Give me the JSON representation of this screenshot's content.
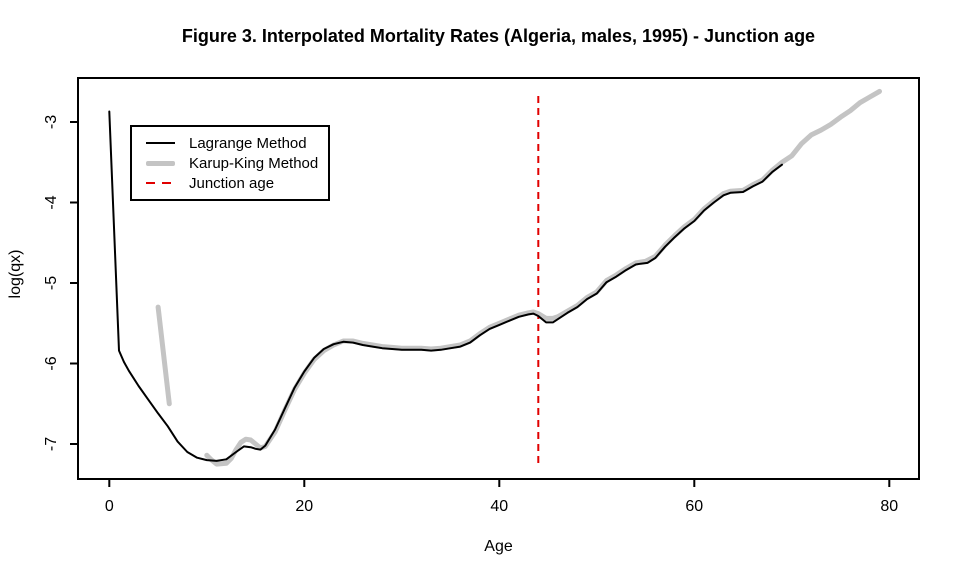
{
  "title": "Figure 3. Interpolated Mortality Rates (Algeria, males, 1995) - Junction age",
  "axes": {
    "x": {
      "label": "Age",
      "ticks": [
        "0",
        "20",
        "40",
        "60",
        "80"
      ]
    },
    "y": {
      "label": "log(qx)",
      "ticks": [
        "-3",
        "-4",
        "-5",
        "-6",
        "-7"
      ]
    }
  },
  "legend": {
    "items": [
      {
        "label": "Lagrange Method"
      },
      {
        "label": "Karup-King Method"
      },
      {
        "label": "Junction age"
      }
    ]
  },
  "colors": {
    "lagrange": "#000000",
    "karup_king": "#C4C4C4",
    "junction": "#E00000",
    "axis": "#000000"
  },
  "chart_data": {
    "type": "line",
    "title": "Figure 3. Interpolated Mortality Rates (Algeria, males, 1995) - Junction age",
    "xlabel": "Age",
    "ylabel": "log(qx)",
    "xlim": [
      -3,
      83
    ],
    "ylim": [
      -7.45,
      -2.45
    ],
    "x_ticks": [
      0,
      20,
      40,
      60,
      80
    ],
    "y_ticks": [
      -3,
      -4,
      -5,
      -6,
      -7
    ],
    "grid": false,
    "legend_position": "top-left",
    "junction_age": 44,
    "junction_line": {
      "x": 44,
      "style": "dashed",
      "color": "#E00000"
    },
    "series": [
      {
        "name": "Karup-King Method",
        "color": "#C4C4C4",
        "width": 5,
        "segments": [
          [
            [
              5,
              -5.3
            ],
            [
              6.15,
              -6.5
            ]
          ],
          [
            [
              10,
              -7.14
            ],
            [
              10.5,
              -7.2
            ],
            [
              11,
              -7.25
            ],
            [
              12,
              -7.24
            ],
            [
              12.5,
              -7.18
            ],
            [
              13,
              -7.07
            ],
            [
              13.5,
              -6.98
            ],
            [
              14,
              -6.94
            ],
            [
              14.5,
              -6.95
            ],
            [
              15,
              -7.0
            ],
            [
              15.5,
              -7.05
            ],
            [
              16,
              -7.03
            ],
            [
              17,
              -6.85
            ],
            [
              18,
              -6.58
            ],
            [
              19,
              -6.32
            ],
            [
              20,
              -6.12
            ],
            [
              21,
              -5.95
            ],
            [
              22,
              -5.84
            ],
            [
              23,
              -5.77
            ],
            [
              24,
              -5.72
            ],
            [
              25,
              -5.72
            ],
            [
              26,
              -5.75
            ],
            [
              27,
              -5.77
            ],
            [
              28,
              -5.79
            ],
            [
              29,
              -5.8
            ],
            [
              30,
              -5.81
            ],
            [
              31,
              -5.81
            ],
            [
              32,
              -5.81
            ],
            [
              33,
              -5.82
            ],
            [
              34,
              -5.81
            ],
            [
              35,
              -5.79
            ],
            [
              36,
              -5.77
            ],
            [
              37,
              -5.72
            ],
            [
              38,
              -5.63
            ],
            [
              39,
              -5.55
            ],
            [
              40,
              -5.5
            ],
            [
              41,
              -5.45
            ],
            [
              42,
              -5.4
            ],
            [
              43,
              -5.37
            ],
            [
              43.5,
              -5.36
            ],
            [
              44,
              -5.38
            ],
            [
              44.8,
              -5.44
            ],
            [
              45.5,
              -5.44
            ],
            [
              46,
              -5.42
            ],
            [
              47,
              -5.35
            ],
            [
              48,
              -5.28
            ],
            [
              49,
              -5.18
            ],
            [
              50,
              -5.11
            ],
            [
              51,
              -4.97
            ],
            [
              52,
              -4.9
            ],
            [
              53,
              -4.82
            ],
            [
              54,
              -4.75
            ],
            [
              55,
              -4.73
            ],
            [
              56,
              -4.67
            ],
            [
              57,
              -4.53
            ],
            [
              58,
              -4.41
            ],
            [
              59,
              -4.3
            ],
            [
              60,
              -4.21
            ],
            [
              61,
              -4.08
            ],
            [
              62,
              -3.98
            ],
            [
              63,
              -3.89
            ],
            [
              63.7,
              -3.86
            ],
            [
              65,
              -3.85
            ],
            [
              66,
              -3.78
            ],
            [
              67,
              -3.72
            ],
            [
              68,
              -3.6
            ],
            [
              69,
              -3.5
            ],
            [
              70,
              -3.42
            ],
            [
              71,
              -3.27
            ],
            [
              72,
              -3.16
            ],
            [
              73,
              -3.1
            ],
            [
              74,
              -3.03
            ],
            [
              75,
              -2.94
            ],
            [
              76,
              -2.86
            ],
            [
              77,
              -2.76
            ],
            [
              78,
              -2.69
            ],
            [
              79,
              -2.62
            ]
          ]
        ]
      },
      {
        "name": "Lagrange Method",
        "color": "#000000",
        "width": 2,
        "segments": [
          [
            [
              0,
              -2.87
            ],
            [
              1,
              -5.84
            ],
            [
              1.5,
              -5.98
            ],
            [
              2,
              -6.09
            ],
            [
              3,
              -6.28
            ],
            [
              4,
              -6.45
            ],
            [
              5,
              -6.62
            ],
            [
              6,
              -6.78
            ],
            [
              7,
              -6.97
            ],
            [
              8,
              -7.1
            ],
            [
              9,
              -7.17
            ],
            [
              10,
              -7.2
            ],
            [
              11,
              -7.21
            ],
            [
              12,
              -7.19
            ],
            [
              13,
              -7.1
            ],
            [
              13.8,
              -7.03
            ],
            [
              14.5,
              -7.04
            ],
            [
              15,
              -7.06
            ],
            [
              15.5,
              -7.07
            ],
            [
              16,
              -7.02
            ],
            [
              17,
              -6.82
            ],
            [
              18,
              -6.56
            ],
            [
              19,
              -6.3
            ],
            [
              20,
              -6.1
            ],
            [
              21,
              -5.93
            ],
            [
              22,
              -5.82
            ],
            [
              23,
              -5.76
            ],
            [
              24,
              -5.73
            ],
            [
              25,
              -5.74
            ],
            [
              26,
              -5.77
            ],
            [
              27,
              -5.79
            ],
            [
              28,
              -5.81
            ],
            [
              29,
              -5.82
            ],
            [
              30,
              -5.83
            ],
            [
              31,
              -5.83
            ],
            [
              32,
              -5.83
            ],
            [
              33,
              -5.84
            ],
            [
              34,
              -5.83
            ],
            [
              35,
              -5.81
            ],
            [
              36,
              -5.79
            ],
            [
              37,
              -5.74
            ],
            [
              38,
              -5.65
            ],
            [
              39,
              -5.57
            ],
            [
              40,
              -5.52
            ],
            [
              41,
              -5.47
            ],
            [
              42,
              -5.42
            ],
            [
              43,
              -5.39
            ],
            [
              43.5,
              -5.38
            ],
            [
              44,
              -5.41
            ],
            [
              44.8,
              -5.49
            ],
            [
              45.5,
              -5.49
            ],
            [
              46,
              -5.45
            ],
            [
              47,
              -5.37
            ],
            [
              48,
              -5.3
            ],
            [
              49,
              -5.2
            ],
            [
              50,
              -5.13
            ],
            [
              51,
              -4.99
            ],
            [
              52,
              -4.92
            ],
            [
              53,
              -4.84
            ],
            [
              54,
              -4.77
            ],
            [
              54.5,
              -4.76
            ],
            [
              55.2,
              -4.75
            ],
            [
              56,
              -4.69
            ],
            [
              57,
              -4.55
            ],
            [
              58,
              -4.43
            ],
            [
              59,
              -4.32
            ],
            [
              60,
              -4.23
            ],
            [
              61,
              -4.1
            ],
            [
              62,
              -4.0
            ],
            [
              63,
              -3.91
            ],
            [
              63.7,
              -3.88
            ],
            [
              65,
              -3.87
            ],
            [
              66,
              -3.8
            ],
            [
              67,
              -3.74
            ],
            [
              68,
              -3.62
            ],
            [
              69,
              -3.53
            ]
          ]
        ]
      }
    ]
  }
}
